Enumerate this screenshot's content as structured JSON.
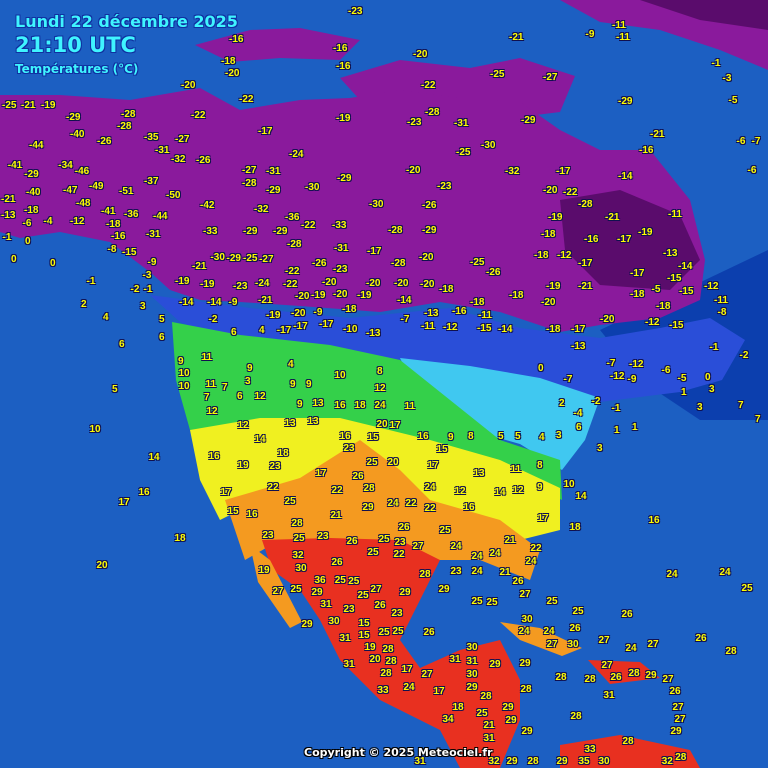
{
  "header": {
    "date": "Lundi 22 décembre 2025",
    "time": "21:10 UTC",
    "subtitle": "Températures (°C)"
  },
  "footer": {
    "copyright": "Copyright © 2025 Meteociel.fr"
  },
  "colors": {
    "ocean": "#1c5fc2",
    "very_cold": "#8a1a9c",
    "extreme_cold": "#5a0c6c",
    "freezing": "#2a4ed8",
    "cold": "#40c8f0",
    "mild": "#34d04a",
    "warm": "#f0f020",
    "hot": "#f49a20",
    "very_hot": "#e83020",
    "label_text": "#ffff00"
  },
  "stations": [
    "-23",
    "-16",
    "-16",
    "-20",
    "-21",
    "-9",
    "-11",
    "-11",
    "-18",
    "-20",
    "-16",
    "-25",
    "-27",
    "-1",
    "-3",
    "-20",
    "-22",
    "-22",
    "-5",
    "-25",
    "-21",
    "-19",
    "-28",
    "-22",
    "-28",
    "-29",
    "-29",
    "-28",
    "-19",
    "-23",
    "-31",
    "-29",
    "-40",
    "-26",
    "-35",
    "-27",
    "-17",
    "-21",
    "-6",
    "-7",
    "-44",
    "-31",
    "-30",
    "-25",
    "-16",
    "-32",
    "-26",
    "-24",
    "-41",
    "-34",
    "-46",
    "-29",
    "-27",
    "-31",
    "-20",
    "-32",
    "-17",
    "-14",
    "-6",
    "-37",
    "-28",
    "-29",
    "-23",
    "-21",
    "-40",
    "-47",
    "-49",
    "-51",
    "-50",
    "-29",
    "-30",
    "-20",
    "-22",
    "-28",
    "-48",
    "-42",
    "-32",
    "-30",
    "-26",
    "-18",
    "-41",
    "-36",
    "-44",
    "-36",
    "-13",
    "-6",
    "-4",
    "-12",
    "-22",
    "-33",
    "-19",
    "-21",
    "-11",
    "-18",
    "-33",
    "-29",
    "-29",
    "-28",
    "-29",
    "-18",
    "-31",
    "-1",
    "-16",
    "-28",
    "-31",
    "-17",
    "-16",
    "-17",
    "-19",
    "-8",
    "0",
    "-15",
    "-25",
    "-29",
    "-27",
    "-21",
    "-22",
    "-26",
    "-23",
    "-28",
    "-20",
    "-25",
    "-26",
    "-18",
    "-12",
    "-13",
    "-14",
    "0",
    "0",
    "-9",
    "-3",
    "-30",
    "-17",
    "-17",
    "-15",
    "-1",
    "-2",
    "-1",
    "-19",
    "-19",
    "-23",
    "-24",
    "-22",
    "-20",
    "-20",
    "-20",
    "-20",
    "-18",
    "-18",
    "-19",
    "-21",
    "-18",
    "-5",
    "-15",
    "-12",
    "2",
    "3",
    "-14",
    "-14",
    "-9",
    "-21",
    "-20",
    "-19",
    "-20",
    "-19",
    "-14",
    "-18",
    "-20",
    "-11",
    "-8",
    "-18",
    "4",
    "5",
    "-2",
    "-19",
    "-20",
    "-18",
    "-9",
    "-7",
    "-13",
    "-16",
    "-11",
    "-20",
    "-12",
    "-15",
    "6",
    "6",
    "6",
    "4",
    "-17",
    "-17",
    "-17",
    "-10",
    "-13",
    "-11",
    "-12",
    "-15",
    "-14",
    "-18",
    "-17",
    "-13",
    "9",
    "10",
    "10",
    "11",
    "11",
    "7",
    "7",
    "6",
    "12",
    "9",
    "5",
    "3",
    "4",
    "9",
    "9",
    "10",
    "12",
    "8",
    "9",
    "13",
    "16",
    "18",
    "24",
    "11",
    "10",
    "12",
    "12",
    "14",
    "13",
    "13",
    "20",
    "16",
    "15",
    "23",
    "17",
    "16",
    "9",
    "8",
    "5",
    "5",
    "4",
    "3",
    "6",
    "3",
    "1",
    "1",
    "7",
    "3",
    "14",
    "16",
    "19",
    "23",
    "18",
    "17",
    "25",
    "20",
    "17",
    "15",
    "13",
    "11",
    "8",
    "16",
    "17",
    "17",
    "22",
    "22",
    "28",
    "24",
    "12",
    "14",
    "12",
    "9",
    "10",
    "14",
    "15",
    "16",
    "25",
    "26",
    "29",
    "24",
    "22",
    "22",
    "16",
    "17",
    "18",
    "16",
    "28",
    "21",
    "26",
    "25",
    "18",
    "23",
    "25",
    "23",
    "26",
    "25",
    "23",
    "27",
    "24",
    "21",
    "22",
    "32",
    "25",
    "22",
    "20",
    "26",
    "24",
    "24",
    "24",
    "19",
    "30",
    "25",
    "28",
    "23",
    "24",
    "21",
    "26",
    "24",
    "24",
    "36",
    "27",
    "25",
    "29",
    "27",
    "25",
    "29",
    "25",
    "25",
    "25",
    "25",
    "31",
    "25",
    "26",
    "29",
    "27",
    "23",
    "23",
    "29",
    "30",
    "25",
    "26",
    "30",
    "24",
    "24",
    "26",
    "31",
    "15",
    "15",
    "25",
    "25",
    "26",
    "27",
    "26",
    "30",
    "31",
    "31",
    "28",
    "19",
    "27",
    "30",
    "24",
    "27",
    "28",
    "29",
    "29",
    "28",
    "20",
    "27",
    "26",
    "28",
    "29",
    "27",
    "31",
    "28",
    "17",
    "27",
    "30",
    "26",
    "28",
    "28",
    "29",
    "33",
    "24",
    "17",
    "28",
    "28",
    "31",
    "27",
    "18",
    "29",
    "28",
    "34",
    "25",
    "29",
    "27",
    "29",
    "28",
    "21",
    "29",
    "31",
    "33",
    "30",
    "35",
    "32",
    "28",
    "31",
    "32",
    "29",
    "28",
    "29",
    "0",
    "1",
    "-1",
    "-2",
    "-4",
    "2",
    "0",
    "-7",
    "-7",
    "-12",
    "-12",
    "-9",
    "-6",
    "-5",
    "-1",
    "-2",
    "7",
    "3"
  ]
}
